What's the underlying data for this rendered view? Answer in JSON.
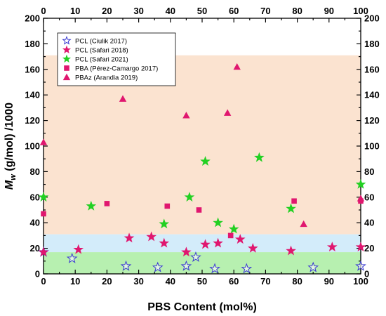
{
  "chart_data": {
    "type": "scatter",
    "xlabel": "PBS Content (mol%)",
    "ylabel_main": "M",
    "ylabel_sub": "w",
    "ylabel_rest": " (g/mol) /1000",
    "xlim": [
      0,
      100
    ],
    "ylim": [
      0,
      200
    ],
    "x_ticks": [
      0,
      10,
      20,
      30,
      40,
      50,
      60,
      70,
      80,
      90,
      100
    ],
    "y_ticks": [
      0,
      20,
      40,
      60,
      80,
      100,
      120,
      140,
      160,
      180,
      200
    ],
    "grid": false,
    "legend_position": "top-left",
    "bands": [
      {
        "from": 0,
        "to": 17,
        "color": "#b7f0b0"
      },
      {
        "from": 17,
        "to": 31,
        "color": "#d3ecfa"
      },
      {
        "from": 31,
        "to": 171,
        "color": "#fbe3d0"
      }
    ],
    "series": [
      {
        "name": "PCL (Ciulik 2017)",
        "marker": "star-open",
        "color": "#3a3ad0",
        "points": [
          [
            0,
            17
          ],
          [
            9,
            12
          ],
          [
            26,
            6
          ],
          [
            36,
            5
          ],
          [
            45,
            6
          ],
          [
            48,
            13
          ],
          [
            54,
            4
          ],
          [
            64,
            4
          ],
          [
            85,
            5
          ],
          [
            100,
            6
          ]
        ]
      },
      {
        "name": "PCL (Safari 2018)",
        "marker": "star",
        "color": "#e0176f",
        "points": [
          [
            0,
            17
          ],
          [
            11,
            19
          ],
          [
            27,
            28
          ],
          [
            34,
            29
          ],
          [
            38,
            24
          ],
          [
            45,
            17
          ],
          [
            51,
            23
          ],
          [
            55,
            24
          ],
          [
            62,
            27
          ],
          [
            66,
            20
          ],
          [
            78,
            18
          ],
          [
            91,
            21
          ],
          [
            100,
            21
          ]
        ]
      },
      {
        "name": "PCL (Safari 2021)",
        "marker": "star",
        "color": "#22d022",
        "points": [
          [
            0,
            60
          ],
          [
            15,
            53
          ],
          [
            38,
            39
          ],
          [
            46,
            60
          ],
          [
            51,
            88
          ],
          [
            55,
            40
          ],
          [
            60,
            35
          ],
          [
            68,
            91
          ],
          [
            78,
            51
          ],
          [
            100,
            70
          ]
        ]
      },
      {
        "name": "PBA (Pérez-Camargo 2017)",
        "marker": "square",
        "color": "#e0176f",
        "points": [
          [
            0,
            47
          ],
          [
            20,
            55
          ],
          [
            39,
            53
          ],
          [
            49,
            50
          ],
          [
            59,
            30
          ],
          [
            79,
            57
          ],
          [
            100,
            57
          ]
        ]
      },
      {
        "name": "PBAz (Arandia 2019)",
        "marker": "triangle",
        "color": "#e0176f",
        "points": [
          [
            0,
            103
          ],
          [
            25,
            137
          ],
          [
            45,
            124
          ],
          [
            58,
            126
          ],
          [
            61,
            162
          ],
          [
            82,
            39
          ],
          [
            100,
            59
          ]
        ]
      }
    ]
  }
}
